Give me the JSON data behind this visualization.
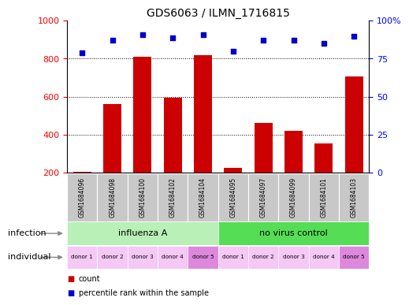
{
  "title": "GDS6063 / ILMN_1716815",
  "samples": [
    "GSM1684096",
    "GSM1684098",
    "GSM1684100",
    "GSM1684102",
    "GSM1684104",
    "GSM1684095",
    "GSM1684097",
    "GSM1684099",
    "GSM1684101",
    "GSM1684103"
  ],
  "bar_values": [
    205,
    560,
    810,
    595,
    820,
    225,
    460,
    420,
    355,
    705
  ],
  "percentile_values": [
    79,
    87,
    91,
    89,
    91,
    80,
    87,
    87,
    85,
    90
  ],
  "ylim_left": [
    200,
    1000
  ],
  "ylim_right": [
    0,
    100
  ],
  "yticks_left": [
    200,
    400,
    600,
    800,
    1000
  ],
  "yticks_right": [
    0,
    25,
    50,
    75,
    100
  ],
  "infection_groups": [
    {
      "label": "influenza A",
      "start": 0,
      "end": 5,
      "color": "#b8f0b8"
    },
    {
      "label": "no virus control",
      "start": 5,
      "end": 10,
      "color": "#55dd55"
    }
  ],
  "individual_labels": [
    "donor 1",
    "donor 2",
    "donor 3",
    "donor 4",
    "donor 5",
    "donor 1",
    "donor 2",
    "donor 3",
    "donor 4",
    "donor 5"
  ],
  "individual_colors": [
    "#f5c8f5",
    "#f5c8f5",
    "#f5c8f5",
    "#f5c8f5",
    "#dd88dd",
    "#f5c8f5",
    "#f5c8f5",
    "#f5c8f5",
    "#f5c8f5",
    "#dd88dd"
  ],
  "bar_color": "#cc0000",
  "dot_color": "#0000cc",
  "sample_bg_color": "#c8c8c8",
  "legend_count_color": "#cc0000",
  "legend_pct_color": "#0000cc",
  "grid_lines": [
    400,
    600,
    800
  ],
  "bar_bottom": 200
}
